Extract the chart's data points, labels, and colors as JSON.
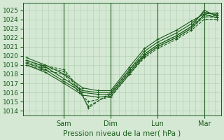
{
  "bg_color": "#d4e8d4",
  "plot_bg_color": "#d4e8d4",
  "grid_color": "#b0ccb0",
  "line_color": "#1a5c1a",
  "xlabel": "Pression niveau de la mer( hPa )",
  "yticks": [
    1014,
    1015,
    1016,
    1017,
    1018,
    1019,
    1020,
    1021,
    1022,
    1023,
    1024,
    1025
  ],
  "ylim": [
    1013.5,
    1025.8
  ],
  "day_labels": [
    "Sam",
    "Dim",
    "Lun",
    "Mar"
  ],
  "xlim": [
    -0.02,
    1.04
  ],
  "day_positions": [
    0.2,
    0.45,
    0.7,
    0.95
  ],
  "vline_positions": [
    0.2,
    0.45,
    0.7,
    0.95
  ],
  "lines": [
    {
      "x": [
        0.0,
        0.1,
        0.2,
        0.3,
        0.38,
        0.45,
        0.55,
        0.63,
        0.7,
        0.8,
        0.88,
        0.95,
        1.02
      ],
      "y": [
        1019.5,
        1018.8,
        1017.5,
        1016.2,
        1016.0,
        1016.0,
        1018.5,
        1020.5,
        1021.5,
        1022.5,
        1023.5,
        1024.8,
        1024.5
      ],
      "dashed": false
    },
    {
      "x": [
        0.0,
        0.1,
        0.2,
        0.3,
        0.38,
        0.45,
        0.55,
        0.63,
        0.7,
        0.8,
        0.88,
        0.95,
        1.02
      ],
      "y": [
        1019.2,
        1018.5,
        1017.2,
        1016.0,
        1015.8,
        1015.8,
        1018.2,
        1020.2,
        1021.2,
        1022.2,
        1023.2,
        1025.0,
        1024.3
      ],
      "dashed": false
    },
    {
      "x": [
        0.0,
        0.1,
        0.2,
        0.3,
        0.38,
        0.45,
        0.55,
        0.63,
        0.7,
        0.8,
        0.88,
        0.95,
        1.02
      ],
      "y": [
        1019.0,
        1018.2,
        1017.0,
        1015.7,
        1015.5,
        1015.6,
        1018.0,
        1020.0,
        1021.0,
        1022.0,
        1023.0,
        1024.5,
        1024.2
      ],
      "dashed": false
    },
    {
      "x": [
        0.0,
        0.1,
        0.2,
        0.3,
        0.38,
        0.45,
        0.55,
        0.63,
        0.7,
        0.8,
        0.88,
        0.95,
        1.02
      ],
      "y": [
        1019.8,
        1019.0,
        1018.0,
        1016.5,
        1016.2,
        1016.2,
        1018.8,
        1020.8,
        1021.8,
        1022.8,
        1023.8,
        1024.6,
        1024.7
      ],
      "dashed": false
    },
    {
      "x": [
        0.0,
        0.08,
        0.2,
        0.28,
        0.33,
        0.45,
        0.55,
        0.63,
        0.7,
        0.8,
        0.88,
        0.95,
        1.02
      ],
      "y": [
        1019.5,
        1019.0,
        1018.5,
        1016.5,
        1014.3,
        1016.0,
        1018.5,
        1020.2,
        1021.2,
        1022.2,
        1023.2,
        1024.5,
        1024.4
      ],
      "dashed": true
    },
    {
      "x": [
        0.0,
        0.08,
        0.2,
        0.28,
        0.33,
        0.45,
        0.55,
        0.63,
        0.7,
        0.8,
        0.88,
        0.95,
        1.02
      ],
      "y": [
        1019.3,
        1018.8,
        1018.3,
        1016.3,
        1014.5,
        1015.8,
        1018.3,
        1020.0,
        1021.0,
        1022.0,
        1023.0,
        1024.3,
        1024.2
      ],
      "dashed": true
    },
    {
      "x": [
        0.0,
        0.08,
        0.2,
        0.28,
        0.33,
        0.45,
        0.55,
        0.63,
        0.7,
        0.8,
        0.88,
        0.95,
        1.02
      ],
      "y": [
        1019.0,
        1018.5,
        1018.0,
        1016.0,
        1015.0,
        1015.5,
        1018.0,
        1019.8,
        1020.8,
        1021.8,
        1022.8,
        1024.0,
        1024.0
      ],
      "dashed": true
    }
  ]
}
